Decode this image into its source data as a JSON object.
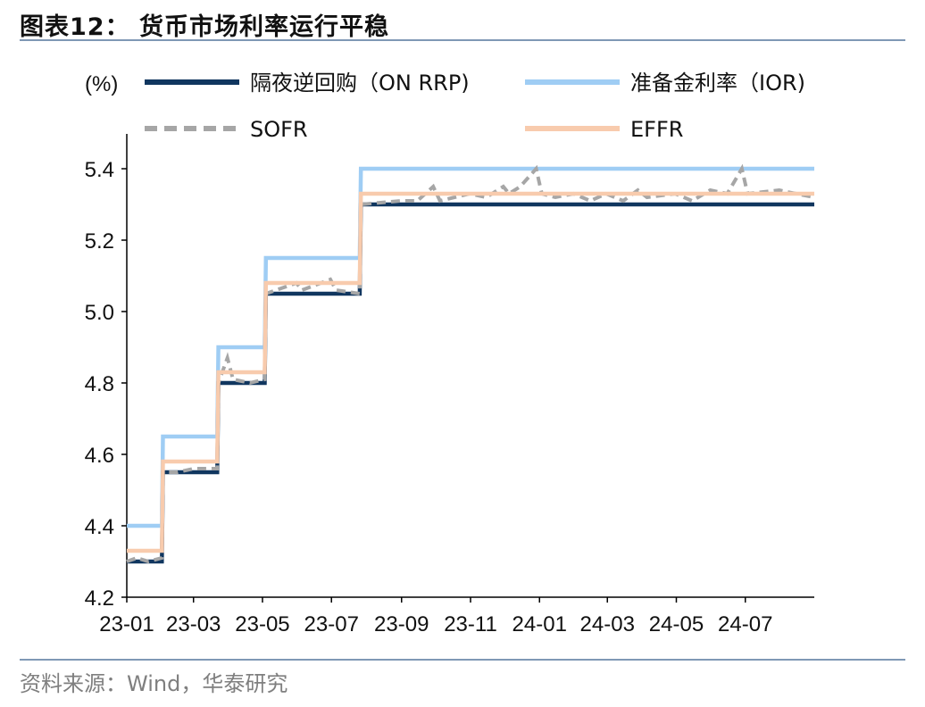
{
  "header": {
    "title": "图表12： 货币市场利率运行平稳"
  },
  "footer": {
    "source": "资料来源：Wind，华泰研究"
  },
  "chart_data": {
    "type": "line",
    "ylabel": "(%)",
    "ylim": [
      4.2,
      5.4
    ],
    "yticks": [
      "4.2",
      "4.4",
      "4.6",
      "4.8",
      "5.0",
      "5.2",
      "5.4"
    ],
    "xticks": [
      "23-01",
      "23-03",
      "23-05",
      "23-07",
      "23-09",
      "23-11",
      "24-01",
      "24-03",
      "24-05",
      "24-07"
    ],
    "xrange": [
      "2023-01-01",
      "2024-08-31"
    ],
    "grid": false,
    "legend_position": "top",
    "series": [
      {
        "name": "隔夜逆回购（ON RRP)",
        "color": "#10365f",
        "style": "solid",
        "points": [
          [
            "2023-01-01",
            4.3
          ],
          [
            "2023-02-01",
            4.3
          ],
          [
            "2023-02-02",
            4.55
          ],
          [
            "2023-03-22",
            4.55
          ],
          [
            "2023-03-23",
            4.8
          ],
          [
            "2023-05-03",
            4.8
          ],
          [
            "2023-05-04",
            5.05
          ],
          [
            "2023-07-26",
            5.05
          ],
          [
            "2023-07-27",
            5.3
          ],
          [
            "2024-08-31",
            5.3
          ]
        ]
      },
      {
        "name": "准备金利率（IOR)",
        "color": "#9fcdf4",
        "style": "solid",
        "points": [
          [
            "2023-01-01",
            4.4
          ],
          [
            "2023-02-01",
            4.4
          ],
          [
            "2023-02-02",
            4.65
          ],
          [
            "2023-03-22",
            4.65
          ],
          [
            "2023-03-23",
            4.9
          ],
          [
            "2023-05-03",
            4.9
          ],
          [
            "2023-05-04",
            5.15
          ],
          [
            "2023-07-26",
            5.15
          ],
          [
            "2023-07-27",
            5.4
          ],
          [
            "2024-08-31",
            5.4
          ]
        ]
      },
      {
        "name": "SOFR",
        "color": "#a6a6a6",
        "style": "dashed",
        "points": [
          [
            "2023-01-01",
            4.3
          ],
          [
            "2023-01-10",
            4.31
          ],
          [
            "2023-01-20",
            4.3
          ],
          [
            "2023-02-01",
            4.31
          ],
          [
            "2023-02-02",
            4.55
          ],
          [
            "2023-02-15",
            4.55
          ],
          [
            "2023-03-01",
            4.56
          ],
          [
            "2023-03-22",
            4.56
          ],
          [
            "2023-03-23",
            4.8
          ],
          [
            "2023-03-31",
            4.87
          ],
          [
            "2023-04-05",
            4.81
          ],
          [
            "2023-04-20",
            4.8
          ],
          [
            "2023-05-03",
            4.81
          ],
          [
            "2023-05-04",
            5.05
          ],
          [
            "2023-05-31",
            5.08
          ],
          [
            "2023-06-05",
            5.06
          ],
          [
            "2023-06-30",
            5.09
          ],
          [
            "2023-07-05",
            5.06
          ],
          [
            "2023-07-26",
            5.05
          ],
          [
            "2023-07-27",
            5.3
          ],
          [
            "2023-08-31",
            5.31
          ],
          [
            "2023-09-15",
            5.31
          ],
          [
            "2023-09-29",
            5.35
          ],
          [
            "2023-10-05",
            5.31
          ],
          [
            "2023-10-31",
            5.33
          ],
          [
            "2023-11-15",
            5.32
          ],
          [
            "2023-11-30",
            5.35
          ],
          [
            "2023-12-05",
            5.33
          ],
          [
            "2023-12-15",
            5.35
          ],
          [
            "2023-12-29",
            5.4
          ],
          [
            "2024-01-03",
            5.33
          ],
          [
            "2024-01-15",
            5.32
          ],
          [
            "2024-01-31",
            5.33
          ],
          [
            "2024-02-15",
            5.31
          ],
          [
            "2024-02-29",
            5.33
          ],
          [
            "2024-03-15",
            5.31
          ],
          [
            "2024-03-28",
            5.34
          ],
          [
            "2024-04-05",
            5.32
          ],
          [
            "2024-04-30",
            5.33
          ],
          [
            "2024-05-15",
            5.31
          ],
          [
            "2024-05-31",
            5.34
          ],
          [
            "2024-06-15",
            5.33
          ],
          [
            "2024-06-28",
            5.4
          ],
          [
            "2024-07-03",
            5.33
          ],
          [
            "2024-07-31",
            5.34
          ],
          [
            "2024-08-15",
            5.33
          ],
          [
            "2024-08-31",
            5.32
          ]
        ]
      },
      {
        "name": "EFFR",
        "color": "#f8cbad",
        "style": "solid",
        "points": [
          [
            "2023-01-01",
            4.33
          ],
          [
            "2023-02-01",
            4.33
          ],
          [
            "2023-02-02",
            4.58
          ],
          [
            "2023-03-22",
            4.58
          ],
          [
            "2023-03-23",
            4.83
          ],
          [
            "2023-05-03",
            4.83
          ],
          [
            "2023-05-04",
            5.08
          ],
          [
            "2023-07-26",
            5.08
          ],
          [
            "2023-07-27",
            5.33
          ],
          [
            "2024-08-31",
            5.33
          ]
        ]
      }
    ]
  }
}
